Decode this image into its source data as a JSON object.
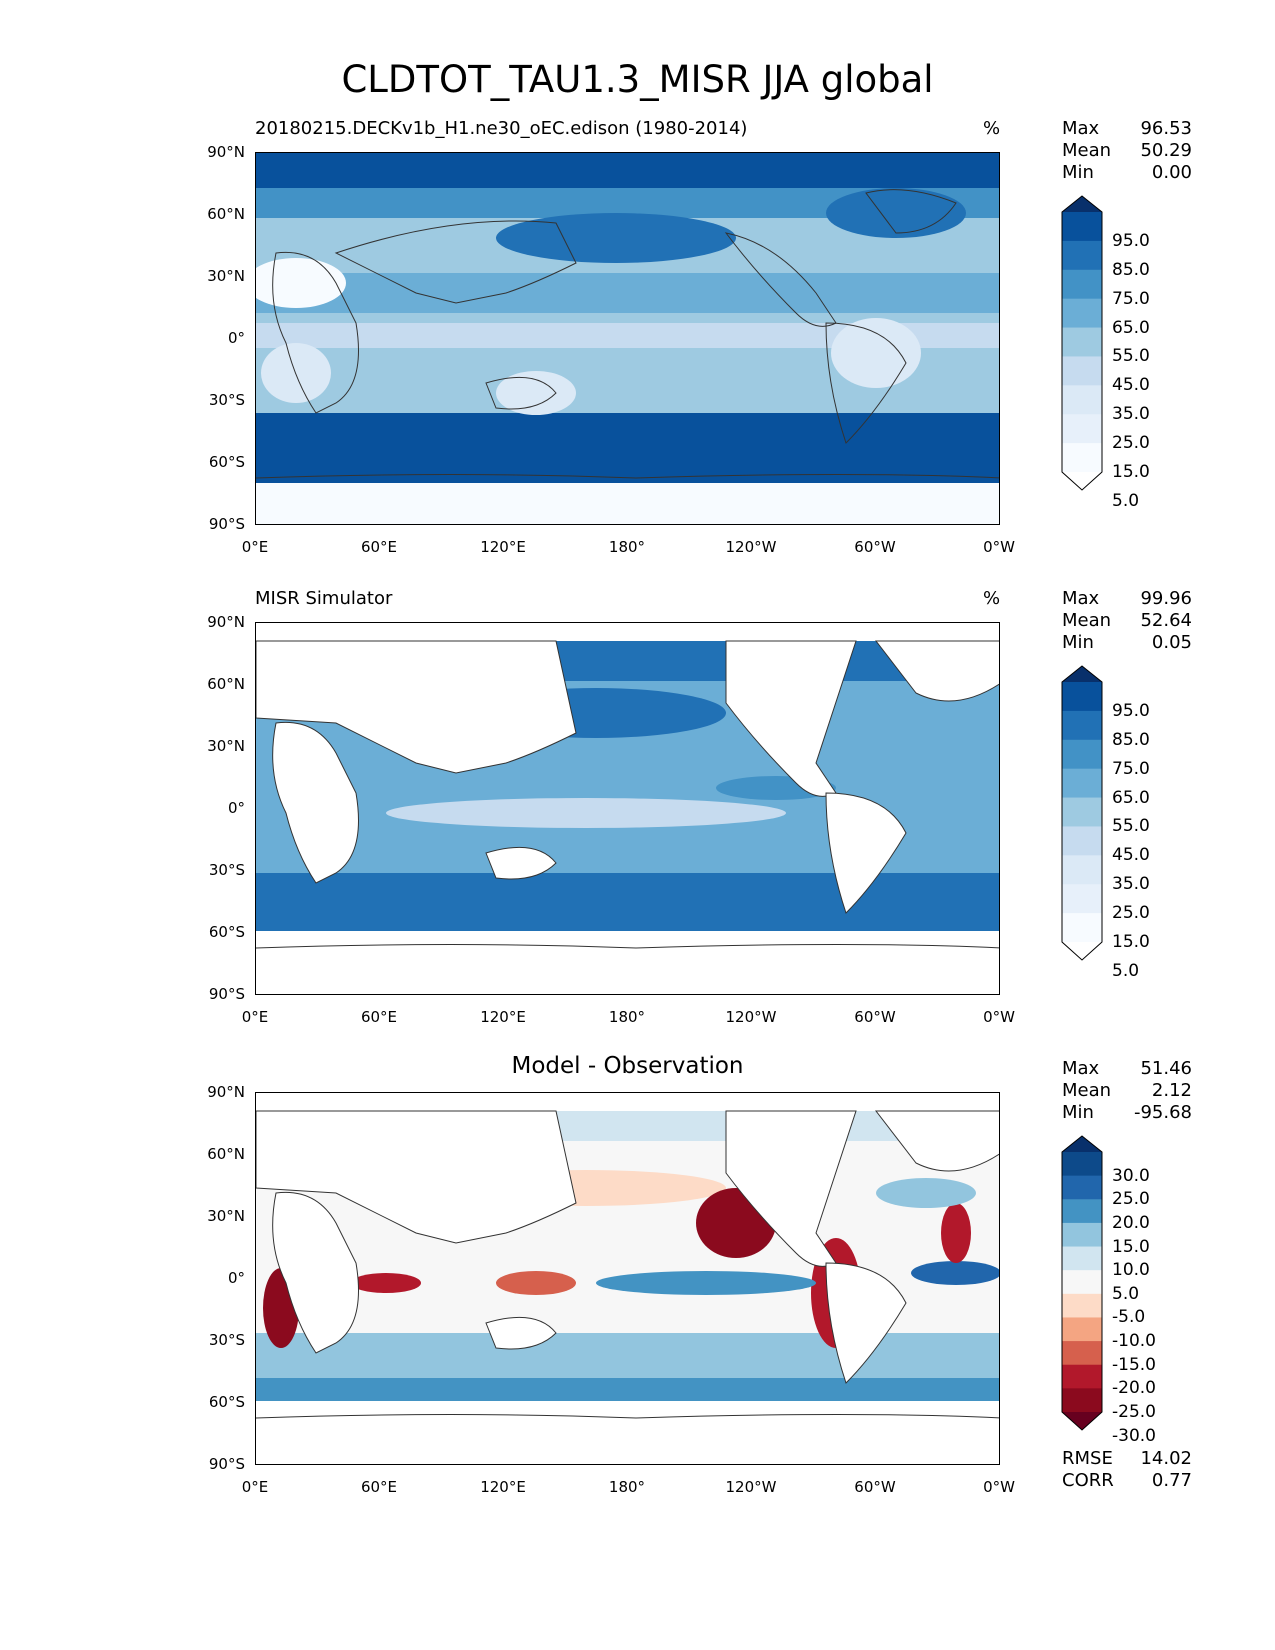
{
  "figure": {
    "title": "CLDTOT_TAU1.3_MISR JJA global"
  },
  "axes": {
    "lat_ticks": [
      "90°N",
      "60°N",
      "30°N",
      "0°",
      "30°S",
      "60°S",
      "90°S"
    ],
    "lon_ticks": [
      "0°E",
      "60°E",
      "120°E",
      "180°",
      "120°W",
      "60°W",
      "0°W"
    ]
  },
  "panels": [
    {
      "title_left": "20180215.DECKv1b_H1.ne30_oEC.edison (1980-2014)",
      "title_right": "%",
      "stats": [
        {
          "label": "Max",
          "value": "96.53"
        },
        {
          "label": "Mean",
          "value": "50.29"
        },
        {
          "label": "Min",
          "value": "0.00"
        }
      ],
      "colorbar": {
        "labels": [
          "95.0",
          "85.0",
          "75.0",
          "65.0",
          "55.0",
          "45.0",
          "35.0",
          "25.0",
          "15.0",
          "5.0"
        ],
        "colors": [
          "#08306b",
          "#08519c",
          "#2171b5",
          "#4292c6",
          "#6baed6",
          "#9ecae1",
          "#c6dbef",
          "#dbe9f6",
          "#e7f0fa",
          "#f7fbff",
          "#ffffff"
        ]
      }
    },
    {
      "title_left": "MISR Simulator",
      "title_right": "%",
      "stats": [
        {
          "label": "Max",
          "value": "99.96"
        },
        {
          "label": "Mean",
          "value": "52.64"
        },
        {
          "label": "Min",
          "value": "0.05"
        }
      ],
      "colorbar": {
        "labels": [
          "95.0",
          "85.0",
          "75.0",
          "65.0",
          "55.0",
          "45.0",
          "35.0",
          "25.0",
          "15.0",
          "5.0"
        ],
        "colors": [
          "#08306b",
          "#08519c",
          "#2171b5",
          "#4292c6",
          "#6baed6",
          "#9ecae1",
          "#c6dbef",
          "#dbe9f6",
          "#e7f0fa",
          "#f7fbff",
          "#ffffff"
        ]
      }
    },
    {
      "title_center": "Model - Observation",
      "stats": [
        {
          "label": "Max",
          "value": "51.46"
        },
        {
          "label": "Mean",
          "value": "2.12"
        },
        {
          "label": "Min",
          "value": "-95.68"
        }
      ],
      "colorbar": {
        "labels": [
          "30.0",
          "25.0",
          "20.0",
          "15.0",
          "10.0",
          "5.0",
          "-5.0",
          "-10.0",
          "-15.0",
          "-20.0",
          "-25.0",
          "-30.0"
        ],
        "colors": [
          "#08306b",
          "#0d4a8a",
          "#2166ac",
          "#4393c3",
          "#92c5de",
          "#d1e5f0",
          "#f7f7f7",
          "#fddbc7",
          "#f4a582",
          "#d6604d",
          "#b2182b",
          "#8b0a1e",
          "#67001f"
        ]
      },
      "metrics": [
        {
          "label": "RMSE",
          "value": "14.02"
        },
        {
          "label": "CORR",
          "value": "0.77"
        }
      ]
    }
  ]
}
